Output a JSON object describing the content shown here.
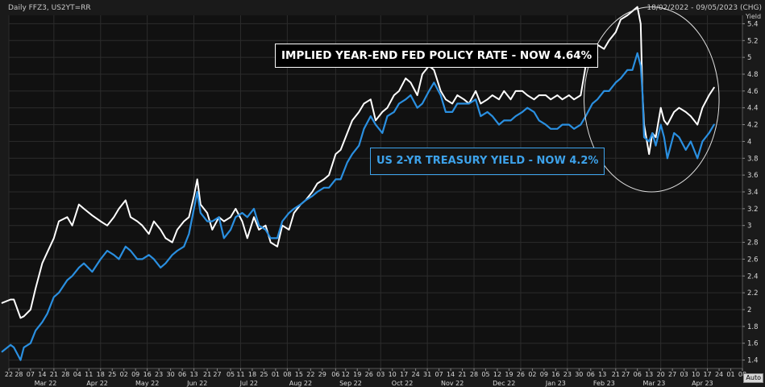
{
  "header": {
    "left_title": "Daily FFZ3, US2YT=RR",
    "date_range": "18/02/2022 - 09/05/2023 (CHG)"
  },
  "axis": {
    "y_unit": "Yield",
    "auto_button": "Auto"
  },
  "callouts": {
    "fed": "IMPLIED YEAR-END FED POLICY RATE - NOW 4.64%",
    "treasury": "US 2-YR TREASURY YIELD - NOW 4.2%"
  },
  "colors": {
    "background": "#1a1a1a",
    "plot_background": "#111111",
    "grid": "#2c2c2c",
    "fed_line": "#ffffff",
    "treasury_line": "#2a8fe0",
    "treasury_box": "#3da2ea",
    "ellipse": "#dcdcdc"
  },
  "chart_data": {
    "type": "line",
    "x_range": [
      "2022-02-22",
      "2023-05-08"
    ],
    "ylim": [
      1.3,
      5.5
    ],
    "y_ticks": [
      1.4,
      1.6,
      1.8,
      2,
      2.2,
      2.4,
      2.6,
      2.8,
      3,
      3.2,
      3.4,
      3.6,
      3.8,
      4,
      4.2,
      4.4,
      4.6,
      4.8,
      5,
      5.2,
      5.4
    ],
    "y_tick_labels": [
      "1.4",
      "1.6",
      "1.8",
      "2",
      "2.2",
      "2.4",
      "2.6",
      "2.8",
      "3",
      "3.2",
      "3.4",
      "3.6",
      "3.8",
      "4",
      "4.2",
      "4.4",
      "4.6",
      "4.8",
      "5",
      "5.2",
      "5.4"
    ],
    "x_tick_days": [
      "22",
      "28",
      "07",
      "14",
      "21",
      "28",
      "04",
      "11",
      "18",
      "25",
      "02",
      "09",
      "16",
      "23",
      "30",
      "06",
      "13",
      "21",
      "27",
      "05",
      "11",
      "18",
      "25",
      "01",
      "08",
      "15",
      "22",
      "29",
      "06",
      "12",
      "19",
      "26",
      "03",
      "10",
      "17",
      "24",
      "31",
      "07",
      "14",
      "21",
      "28",
      "05",
      "12",
      "19",
      "26",
      "02",
      "09",
      "16",
      "23",
      "30",
      "06",
      "13",
      "21",
      "27",
      "06",
      "13",
      "20",
      "27",
      "03",
      "10",
      "17",
      "24",
      "01",
      "08"
    ],
    "x_tick_dates": [
      "2022-02-22",
      "2022-02-28",
      "2022-03-07",
      "2022-03-14",
      "2022-03-21",
      "2022-03-28",
      "2022-04-04",
      "2022-04-11",
      "2022-04-18",
      "2022-04-25",
      "2022-05-02",
      "2022-05-09",
      "2022-05-16",
      "2022-05-23",
      "2022-05-30",
      "2022-06-06",
      "2022-06-13",
      "2022-06-21",
      "2022-06-27",
      "2022-07-05",
      "2022-07-11",
      "2022-07-18",
      "2022-07-25",
      "2022-08-01",
      "2022-08-08",
      "2022-08-15",
      "2022-08-22",
      "2022-08-29",
      "2022-09-06",
      "2022-09-12",
      "2022-09-19",
      "2022-09-26",
      "2022-10-03",
      "2022-10-10",
      "2022-10-17",
      "2022-10-24",
      "2022-10-31",
      "2022-11-07",
      "2022-11-14",
      "2022-11-21",
      "2022-11-28",
      "2022-12-05",
      "2022-12-12",
      "2022-12-19",
      "2022-12-26",
      "2023-01-02",
      "2023-01-09",
      "2023-01-16",
      "2023-01-23",
      "2023-01-30",
      "2023-02-06",
      "2023-02-13",
      "2023-02-21",
      "2023-02-27",
      "2023-03-06",
      "2023-03-13",
      "2023-03-20",
      "2023-03-27",
      "2023-04-03",
      "2023-04-10",
      "2023-04-17",
      "2023-04-24",
      "2023-05-01",
      "2023-05-08"
    ],
    "x_month_labels": [
      "Mar 22",
      "Apr 22",
      "May 22",
      "Jun 22",
      "Jul 22",
      "Aug 22",
      "Sep 22",
      "Oct 22",
      "Nov 22",
      "Dec 22",
      "Jan 23",
      "Feb 23",
      "Mar 23",
      "Apr 23"
    ],
    "x_month_dates": [
      "2022-03-16",
      "2022-04-16",
      "2022-05-16",
      "2022-06-15",
      "2022-07-16",
      "2022-08-16",
      "2022-09-15",
      "2022-10-16",
      "2022-11-15",
      "2022-12-16",
      "2023-01-16",
      "2023-02-14",
      "2023-03-16",
      "2023-04-14"
    ],
    "ellipse_annotation": {
      "x": [
        "2023-02-02",
        "2023-04-24"
      ],
      "y": [
        3.4,
        5.6
      ]
    },
    "series": [
      {
        "id": "fed",
        "x": [
          "2022-02-18",
          "2022-02-23",
          "2022-02-25",
          "2022-03-01",
          "2022-03-03",
          "2022-03-07",
          "2022-03-10",
          "2022-03-14",
          "2022-03-17",
          "2022-03-21",
          "2022-03-24",
          "2022-03-29",
          "2022-04-01",
          "2022-04-05",
          "2022-04-08",
          "2022-04-13",
          "2022-04-18",
          "2022-04-22",
          "2022-04-26",
          "2022-04-29",
          "2022-05-03",
          "2022-05-06",
          "2022-05-10",
          "2022-05-13",
          "2022-05-17",
          "2022-05-20",
          "2022-05-24",
          "2022-05-27",
          "2022-05-31",
          "2022-06-03",
          "2022-06-07",
          "2022-06-10",
          "2022-06-13",
          "2022-06-15",
          "2022-06-17",
          "2022-06-21",
          "2022-06-24",
          "2022-06-28",
          "2022-07-01",
          "2022-07-05",
          "2022-07-08",
          "2022-07-12",
          "2022-07-15",
          "2022-07-19",
          "2022-07-22",
          "2022-07-26",
          "2022-07-29",
          "2022-08-02",
          "2022-08-05",
          "2022-08-09",
          "2022-08-12",
          "2022-08-16",
          "2022-08-19",
          "2022-08-23",
          "2022-08-26",
          "2022-08-30",
          "2022-09-02",
          "2022-09-06",
          "2022-09-09",
          "2022-09-13",
          "2022-09-16",
          "2022-09-20",
          "2022-09-23",
          "2022-09-27",
          "2022-09-30",
          "2022-10-04",
          "2022-10-07",
          "2022-10-11",
          "2022-10-14",
          "2022-10-18",
          "2022-10-21",
          "2022-10-25",
          "2022-10-28",
          "2022-11-01",
          "2022-11-04",
          "2022-11-08",
          "2022-11-11",
          "2022-11-15",
          "2022-11-18",
          "2022-11-22",
          "2022-11-25",
          "2022-11-29",
          "2022-12-02",
          "2022-12-06",
          "2022-12-09",
          "2022-12-13",
          "2022-12-16",
          "2022-12-20",
          "2022-12-23",
          "2022-12-27",
          "2022-12-30",
          "2023-01-03",
          "2023-01-06",
          "2023-01-10",
          "2023-01-13",
          "2023-01-17",
          "2023-01-20",
          "2023-01-24",
          "2023-01-27",
          "2023-01-31",
          "2023-02-03",
          "2023-02-07",
          "2023-02-10",
          "2023-02-14",
          "2023-02-17",
          "2023-02-21",
          "2023-02-24",
          "2023-02-28",
          "2023-03-03",
          "2023-03-06",
          "2023-03-08",
          "2023-03-09",
          "2023-03-10",
          "2023-03-13",
          "2023-03-15",
          "2023-03-17",
          "2023-03-20",
          "2023-03-22",
          "2023-03-24",
          "2023-03-28",
          "2023-03-31",
          "2023-04-04",
          "2023-04-07",
          "2023-04-11",
          "2023-04-14",
          "2023-04-18",
          "2023-04-21"
        ],
        "y": [
          2.08,
          2.12,
          2.12,
          1.9,
          1.92,
          2.0,
          2.25,
          2.55,
          2.68,
          2.85,
          3.05,
          3.1,
          3.0,
          3.25,
          3.2,
          3.12,
          3.05,
          3.0,
          3.1,
          3.2,
          3.3,
          3.1,
          3.05,
          3.0,
          2.9,
          3.05,
          2.95,
          2.85,
          2.8,
          2.95,
          3.05,
          3.1,
          3.35,
          3.55,
          3.25,
          3.15,
          2.95,
          3.1,
          3.05,
          3.1,
          3.2,
          3.05,
          2.85,
          3.1,
          2.95,
          3.0,
          2.8,
          2.75,
          3.0,
          2.95,
          3.15,
          3.25,
          3.3,
          3.4,
          3.5,
          3.55,
          3.6,
          3.85,
          3.9,
          4.1,
          4.25,
          4.35,
          4.45,
          4.5,
          4.25,
          4.35,
          4.4,
          4.55,
          4.6,
          4.75,
          4.7,
          4.55,
          4.8,
          4.9,
          4.85,
          4.6,
          4.5,
          4.45,
          4.55,
          4.5,
          4.45,
          4.6,
          4.45,
          4.5,
          4.55,
          4.5,
          4.6,
          4.5,
          4.6,
          4.6,
          4.55,
          4.5,
          4.55,
          4.55,
          4.5,
          4.55,
          4.5,
          4.55,
          4.5,
          4.55,
          4.9,
          5.1,
          5.15,
          5.1,
          5.2,
          5.3,
          5.45,
          5.5,
          5.55,
          5.6,
          5.4,
          4.6,
          4.2,
          3.85,
          4.1,
          4.05,
          4.4,
          4.25,
          4.2,
          4.35,
          4.4,
          4.35,
          4.3,
          4.2,
          4.4,
          4.55,
          4.64
        ]
      },
      {
        "id": "treasury",
        "x": [
          "2022-02-18",
          "2022-02-23",
          "2022-02-25",
          "2022-03-01",
          "2022-03-03",
          "2022-03-07",
          "2022-03-10",
          "2022-03-14",
          "2022-03-17",
          "2022-03-21",
          "2022-03-24",
          "2022-03-29",
          "2022-04-01",
          "2022-04-05",
          "2022-04-08",
          "2022-04-13",
          "2022-04-18",
          "2022-04-22",
          "2022-04-26",
          "2022-04-29",
          "2022-05-03",
          "2022-05-06",
          "2022-05-10",
          "2022-05-13",
          "2022-05-17",
          "2022-05-20",
          "2022-05-24",
          "2022-05-27",
          "2022-05-31",
          "2022-06-03",
          "2022-06-07",
          "2022-06-10",
          "2022-06-13",
          "2022-06-15",
          "2022-06-17",
          "2022-06-21",
          "2022-06-24",
          "2022-06-28",
          "2022-07-01",
          "2022-07-05",
          "2022-07-08",
          "2022-07-12",
          "2022-07-15",
          "2022-07-19",
          "2022-07-22",
          "2022-07-26",
          "2022-07-29",
          "2022-08-02",
          "2022-08-05",
          "2022-08-09",
          "2022-08-12",
          "2022-08-16",
          "2022-08-19",
          "2022-08-23",
          "2022-08-26",
          "2022-08-30",
          "2022-09-02",
          "2022-09-06",
          "2022-09-09",
          "2022-09-13",
          "2022-09-16",
          "2022-09-20",
          "2022-09-23",
          "2022-09-27",
          "2022-09-30",
          "2022-10-04",
          "2022-10-07",
          "2022-10-11",
          "2022-10-14",
          "2022-10-18",
          "2022-10-21",
          "2022-10-25",
          "2022-10-28",
          "2022-11-01",
          "2022-11-04",
          "2022-11-08",
          "2022-11-11",
          "2022-11-15",
          "2022-11-18",
          "2022-11-22",
          "2022-11-25",
          "2022-11-29",
          "2022-12-02",
          "2022-12-06",
          "2022-12-09",
          "2022-12-13",
          "2022-12-16",
          "2022-12-20",
          "2022-12-23",
          "2022-12-27",
          "2022-12-30",
          "2023-01-03",
          "2023-01-06",
          "2023-01-10",
          "2023-01-13",
          "2023-01-17",
          "2023-01-20",
          "2023-01-24",
          "2023-01-27",
          "2023-01-31",
          "2023-02-03",
          "2023-02-07",
          "2023-02-10",
          "2023-02-14",
          "2023-02-17",
          "2023-02-21",
          "2023-02-24",
          "2023-02-28",
          "2023-03-03",
          "2023-03-06",
          "2023-03-08",
          "2023-03-09",
          "2023-03-10",
          "2023-03-13",
          "2023-03-15",
          "2023-03-17",
          "2023-03-20",
          "2023-03-22",
          "2023-03-24",
          "2023-03-28",
          "2023-03-31",
          "2023-04-04",
          "2023-04-07",
          "2023-04-11",
          "2023-04-14",
          "2023-04-18",
          "2023-04-21"
        ],
        "y": [
          1.5,
          1.58,
          1.55,
          1.4,
          1.55,
          1.6,
          1.75,
          1.85,
          1.95,
          2.15,
          2.2,
          2.35,
          2.4,
          2.5,
          2.55,
          2.45,
          2.6,
          2.7,
          2.65,
          2.6,
          2.75,
          2.7,
          2.6,
          2.6,
          2.65,
          2.6,
          2.5,
          2.55,
          2.65,
          2.7,
          2.75,
          2.9,
          3.2,
          3.4,
          3.15,
          3.05,
          3.05,
          3.1,
          2.85,
          2.95,
          3.1,
          3.15,
          3.1,
          3.2,
          3.0,
          2.95,
          2.85,
          2.85,
          3.05,
          3.15,
          3.2,
          3.25,
          3.3,
          3.35,
          3.4,
          3.45,
          3.45,
          3.55,
          3.55,
          3.75,
          3.85,
          3.95,
          4.15,
          4.3,
          4.2,
          4.1,
          4.3,
          4.35,
          4.45,
          4.5,
          4.55,
          4.4,
          4.45,
          4.6,
          4.7,
          4.55,
          4.35,
          4.35,
          4.45,
          4.45,
          4.45,
          4.5,
          4.3,
          4.35,
          4.3,
          4.2,
          4.25,
          4.25,
          4.3,
          4.35,
          4.4,
          4.35,
          4.25,
          4.2,
          4.15,
          4.15,
          4.2,
          4.2,
          4.15,
          4.2,
          4.3,
          4.45,
          4.5,
          4.6,
          4.6,
          4.7,
          4.75,
          4.85,
          4.85,
          5.05,
          4.9,
          4.6,
          4.05,
          4.0,
          4.1,
          3.95,
          4.2,
          4.05,
          3.8,
          4.1,
          4.05,
          3.9,
          4.0,
          3.8,
          4.0,
          4.1,
          4.2
        ]
      }
    ]
  }
}
